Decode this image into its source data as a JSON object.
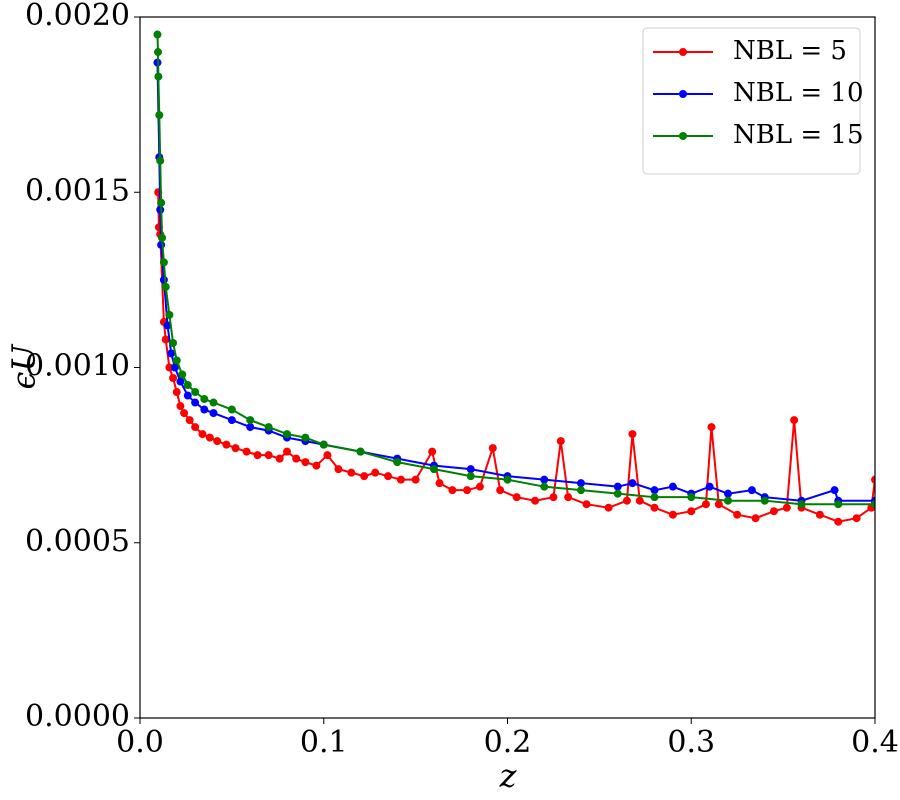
{
  "chart_data": {
    "type": "line",
    "xlabel": "z",
    "ylabel": "ϵU",
    "xlim": [
      0,
      0.4
    ],
    "ylim": [
      0,
      0.002
    ],
    "xticks": [
      {
        "value": 0,
        "label": "0.0"
      },
      0.1,
      0.2,
      0.3,
      0.4
    ],
    "yticks": [
      {
        "value": 0,
        "label": "0.0000"
      },
      0.0005,
      {
        "value": 0.001,
        "label": "0.0010"
      },
      0.0015,
      {
        "value": 0.002,
        "label": "0.0020"
      }
    ],
    "legend": "upper right",
    "series": [
      {
        "name": "NBL = 5",
        "color": "#ff0000",
        "x": [
          0.0099,
          0.0103,
          0.011,
          0.013,
          0.014,
          0.016,
          0.018,
          0.02,
          0.022,
          0.024,
          0.027,
          0.03,
          0.034,
          0.038,
          0.042,
          0.047,
          0.052,
          0.058,
          0.064,
          0.07,
          0.076,
          0.08,
          0.085,
          0.09,
          0.096,
          0.102,
          0.108,
          0.115,
          0.122,
          0.128,
          0.135,
          0.142,
          0.15,
          0.159,
          0.163,
          0.17,
          0.178,
          0.185,
          0.192,
          0.196,
          0.205,
          0.215,
          0.225,
          0.229,
          0.233,
          0.243,
          0.255,
          0.265,
          0.268,
          0.272,
          0.28,
          0.29,
          0.3,
          0.308,
          0.311,
          0.315,
          0.325,
          0.335,
          0.345,
          0.352,
          0.356,
          0.36,
          0.37,
          0.38,
          0.39,
          0.398,
          0.4
        ],
        "values": [
          0.0015,
          0.0014,
          0.00138,
          0.00113,
          0.00108,
          0.001,
          0.00097,
          0.00093,
          0.00089,
          0.00087,
          0.00085,
          0.00083,
          0.00081,
          0.0008,
          0.00079,
          0.00078,
          0.00077,
          0.00076,
          0.00075,
          0.00075,
          0.00074,
          0.00076,
          0.00074,
          0.00073,
          0.00072,
          0.00075,
          0.00071,
          0.0007,
          0.00069,
          0.0007,
          0.00069,
          0.00068,
          0.00068,
          0.00076,
          0.00067,
          0.00065,
          0.00065,
          0.00066,
          0.00077,
          0.00065,
          0.00063,
          0.00062,
          0.00063,
          0.00079,
          0.00063,
          0.00061,
          0.0006,
          0.00062,
          0.00081,
          0.00062,
          0.0006,
          0.00058,
          0.00059,
          0.00061,
          0.00083,
          0.00061,
          0.00058,
          0.00057,
          0.00059,
          0.0006,
          0.00085,
          0.0006,
          0.00058,
          0.00056,
          0.00057,
          0.0006,
          0.00068
        ]
      },
      {
        "name": "NBL = 10",
        "color": "#0000ff",
        "x": [
          0.0095,
          0.0105,
          0.011,
          0.0115,
          0.013,
          0.015,
          0.017,
          0.019,
          0.022,
          0.026,
          0.03,
          0.035,
          0.04,
          0.05,
          0.06,
          0.07,
          0.08,
          0.09,
          0.1,
          0.12,
          0.14,
          0.16,
          0.18,
          0.2,
          0.22,
          0.24,
          0.26,
          0.268,
          0.28,
          0.29,
          0.3,
          0.31,
          0.32,
          0.333,
          0.34,
          0.36,
          0.378,
          0.38,
          0.4
        ],
        "values": [
          0.00187,
          0.0016,
          0.00145,
          0.00135,
          0.00125,
          0.00112,
          0.00104,
          0.001,
          0.00096,
          0.00092,
          0.0009,
          0.00088,
          0.00087,
          0.00085,
          0.00083,
          0.00082,
          0.0008,
          0.00079,
          0.00078,
          0.00076,
          0.00074,
          0.00072,
          0.00071,
          0.00069,
          0.00068,
          0.00067,
          0.00066,
          0.00067,
          0.00065,
          0.00066,
          0.00064,
          0.00066,
          0.00064,
          0.00065,
          0.00063,
          0.00062,
          0.00065,
          0.00062,
          0.00062
        ]
      },
      {
        "name": "NBL = 15",
        "color": "#008000",
        "x": [
          0.0095,
          0.0098,
          0.01,
          0.0105,
          0.011,
          0.0115,
          0.012,
          0.013,
          0.014,
          0.016,
          0.018,
          0.02,
          0.023,
          0.026,
          0.03,
          0.035,
          0.04,
          0.05,
          0.06,
          0.07,
          0.08,
          0.09,
          0.1,
          0.12,
          0.14,
          0.16,
          0.18,
          0.2,
          0.22,
          0.24,
          0.26,
          0.28,
          0.3,
          0.32,
          0.34,
          0.36,
          0.38,
          0.4
        ],
        "values": [
          0.00195,
          0.0019,
          0.00183,
          0.00172,
          0.00159,
          0.00147,
          0.00137,
          0.0013,
          0.00123,
          0.00115,
          0.00107,
          0.00102,
          0.00098,
          0.00095,
          0.00093,
          0.00091,
          0.0009,
          0.00088,
          0.00085,
          0.00083,
          0.00081,
          0.0008,
          0.00078,
          0.00076,
          0.00073,
          0.00071,
          0.00069,
          0.00068,
          0.00066,
          0.00065,
          0.00064,
          0.00063,
          0.00063,
          0.00062,
          0.00062,
          0.00061,
          0.00061,
          0.00061
        ]
      }
    ]
  }
}
